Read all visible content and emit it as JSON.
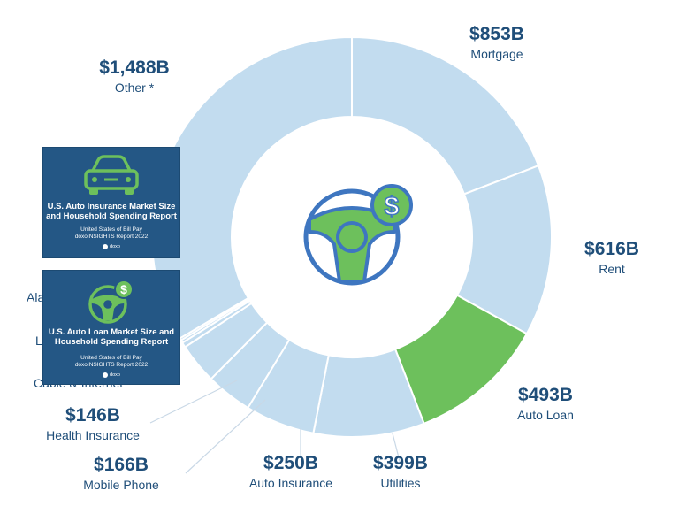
{
  "chart_data": {
    "type": "pie",
    "style": "donut",
    "slices": [
      {
        "label": "Mortgage",
        "display": "$853B",
        "value": 853,
        "color": "#c2dcef"
      },
      {
        "label": "Rent",
        "display": "$616B",
        "value": 616,
        "color": "#c2dcef"
      },
      {
        "label": "Auto Loan",
        "display": "$493B",
        "value": 493,
        "color": "#6dc05c"
      },
      {
        "label": "Utilities",
        "display": "$399B",
        "value": 399,
        "color": "#c2dcef"
      },
      {
        "label": "Auto Insurance",
        "display": "$250B",
        "value": 250,
        "color": "#c2dcef"
      },
      {
        "label": "Mobile Phone",
        "display": "$166B",
        "value": 166,
        "color": "#c2dcef"
      },
      {
        "label": "Health Insurance",
        "display": "$146B",
        "value": 146,
        "color": "#c2dcef"
      },
      {
        "label": "Cable & Internet",
        "display": "",
        "value": 18,
        "color": "#c2dcef"
      },
      {
        "label": "L",
        "display": "",
        "value": 10,
        "color": "#c2dcef"
      },
      {
        "label": "Ala",
        "display": "",
        "value": 8,
        "color": "#c2dcef"
      },
      {
        "label": "Other *",
        "display": "$1,488B",
        "value": 1488,
        "color": "#c2dcef"
      }
    ],
    "highlight": "Auto Loan",
    "center_icon": "steering-wheel-dollar-icon"
  },
  "cards": [
    {
      "icon": "car-icon",
      "title_lines": [
        "U.S. Auto Insurance Market Size",
        "and Household Spending Report"
      ],
      "sub_lines": [
        "United States of Bill Pay",
        "doxoINSIGHTS Report 2022"
      ],
      "brand": "doxo"
    },
    {
      "icon": "steering-wheel-dollar-icon",
      "title_lines": [
        "U.S. Auto Loan Market Size and",
        "Household Spending Report"
      ],
      "sub_lines": [
        "United States of Bill Pay",
        "doxoINSIGHTS Report 2022"
      ],
      "brand": "doxo"
    }
  ],
  "colors": {
    "accent_green": "#6dc05c",
    "slice_blue": "#c2dcef",
    "label_navy": "#1f4e79",
    "card_blue": "#245785"
  }
}
